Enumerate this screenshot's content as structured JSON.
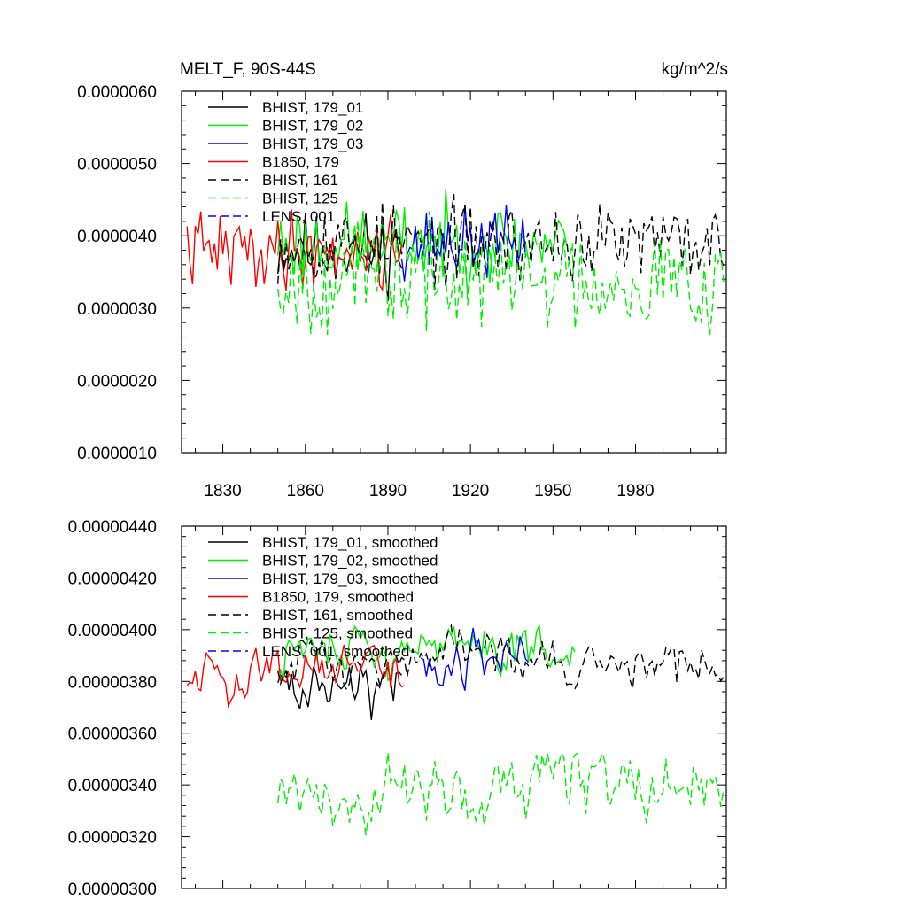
{
  "chart_data": [
    {
      "type": "line",
      "title": "MELT_F, 90S-44S",
      "units": "kg/m^2/s",
      "xlim": [
        1815,
        2013
      ],
      "ylim": [
        1e-06,
        6e-06
      ],
      "x_ticks": [
        1830,
        1860,
        1890,
        1920,
        1950,
        1980
      ],
      "x_tick_labels": [
        "1830",
        "1860",
        "1890",
        "1920",
        "1950",
        "1980"
      ],
      "y_ticks": [
        1e-06,
        2e-06,
        3e-06,
        4e-06,
        5e-06,
        6e-06
      ],
      "y_tick_labels": [
        "0.0000010",
        "0.0000020",
        "0.0000030",
        "0.0000040",
        "0.0000050",
        "0.0000060"
      ],
      "legend_position": "top-left",
      "series": [
        {
          "name": "BHIST, 179_01",
          "color": "#000000",
          "dash": "solid",
          "start": 1850,
          "end": 1895,
          "mean": 3.8e-06,
          "amp": 5.5e-07,
          "seed": 11
        },
        {
          "name": "BHIST, 179_02",
          "color": "#00ee00",
          "dash": "solid",
          "start": 1850,
          "end": 1955,
          "mean": 3.9e-06,
          "amp": 5.8e-07,
          "seed": 23
        },
        {
          "name": "BHIST, 179_03",
          "color": "#0000ff",
          "dash": "solid",
          "start": 1895,
          "end": 1940,
          "mean": 3.9e-06,
          "amp": 5e-07,
          "seed": 37
        },
        {
          "name": "B1850, 179",
          "color": "#ff0000",
          "dash": "solid",
          "start": 1817,
          "end": 1895,
          "mean": 3.8e-06,
          "amp": 5.5e-07,
          "seed": 41
        },
        {
          "name": "BHIST, 161",
          "color": "#000000",
          "dash": "dash",
          "start": 1850,
          "end": 2012,
          "mean": 3.9e-06,
          "amp": 5.8e-07,
          "seed": 53
        },
        {
          "name": "BHIST, 125",
          "color": "#00ee00",
          "dash": "dash",
          "start": 1850,
          "end": 2012,
          "mean": 3.4e-06,
          "amp": 7.5e-07,
          "seed": 67
        },
        {
          "name": "LENS, 001",
          "color": "#0000ff",
          "dash": "dash",
          "start": 1850,
          "end": 1850,
          "mean": 3.9e-06,
          "amp": 0.0,
          "seed": 71
        }
      ]
    },
    {
      "type": "line",
      "title": "",
      "xlim": [
        1815,
        2013
      ],
      "ylim": [
        3e-06,
        4.4e-06
      ],
      "x_ticks": [
        1830,
        1860,
        1890,
        1920,
        1950,
        1980
      ],
      "y_ticks": [
        3e-06,
        3.2e-06,
        3.4e-06,
        3.6e-06,
        3.8e-06,
        4e-06,
        4.2e-06,
        4.4e-06
      ],
      "y_tick_labels": [
        "0.00000300",
        "0.00000320",
        "0.00000340",
        "0.00000360",
        "0.00000380",
        "0.00000400",
        "0.00000420",
        "0.00000440"
      ],
      "legend_position": "top-left",
      "series": [
        {
          "name": "BHIST, 179_01, smoothed",
          "color": "#000000",
          "dash": "solid",
          "start": 1850,
          "end": 1895,
          "mean": 3.8e-06,
          "amp": 1.2e-07,
          "seed": 111
        },
        {
          "name": "BHIST, 179_02, smoothed",
          "color": "#00ee00",
          "dash": "solid",
          "start": 1850,
          "end": 1958,
          "mean": 3.92e-06,
          "amp": 1.2e-07,
          "seed": 123
        },
        {
          "name": "BHIST, 179_03, smoothed",
          "color": "#0000ff",
          "dash": "solid",
          "start": 1902,
          "end": 1941,
          "mean": 3.88e-06,
          "amp": 1e-07,
          "seed": 137
        },
        {
          "name": "B1850, 179, smoothed",
          "color": "#ff0000",
          "dash": "solid",
          "start": 1817,
          "end": 1896,
          "mean": 3.85e-06,
          "amp": 1e-07,
          "seed": 141
        },
        {
          "name": "BHIST, 161, smoothed",
          "color": "#000000",
          "dash": "dash",
          "start": 1850,
          "end": 2012,
          "mean": 3.88e-06,
          "amp": 1e-07,
          "seed": 153
        },
        {
          "name": "BHIST, 125, smoothed",
          "color": "#00ee00",
          "dash": "dash",
          "start": 1850,
          "end": 2012,
          "mean": 3.4e-06,
          "amp": 1.4e-07,
          "seed": 167
        },
        {
          "name": "LENS, 001, smoothed",
          "color": "#0000ff",
          "dash": "dash",
          "start": 1850,
          "end": 1850,
          "mean": 3.88e-06,
          "amp": 0.0,
          "seed": 171
        }
      ]
    }
  ]
}
